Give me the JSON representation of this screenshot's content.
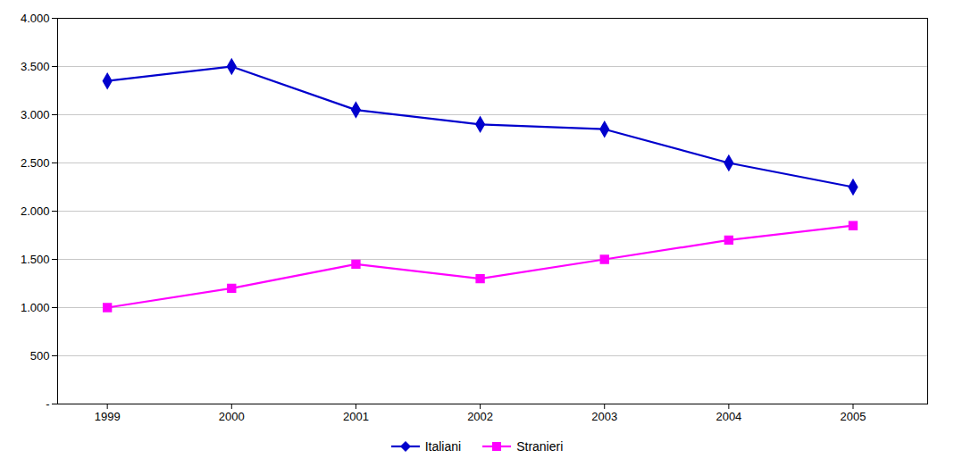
{
  "chart_data": {
    "type": "line",
    "x": [
      1999,
      2000,
      2001,
      2002,
      2003,
      2004,
      2005
    ],
    "xlim": [
      1998.6,
      2005.6
    ],
    "xticks": [
      1999,
      2000,
      2001,
      2002,
      2003,
      2004,
      2005
    ],
    "ylim": [
      0,
      4000
    ],
    "yticks": [
      {
        "value": 0,
        "label": "-"
      },
      500,
      {
        "value": 1000,
        "label": "1.000"
      },
      {
        "value": 1500,
        "label": "1.500"
      },
      {
        "value": 2000,
        "label": "2.000"
      },
      {
        "value": 2500,
        "label": "2.500"
      },
      {
        "value": 3000,
        "label": "3.000"
      },
      {
        "value": 3500,
        "label": "3.500"
      },
      {
        "value": 4000,
        "label": "4.000"
      }
    ],
    "grid": true,
    "legend": "bottom",
    "series": [
      {
        "name": "Italiani",
        "color": "#0000CD",
        "marker": "diamond",
        "values": [
          3350,
          3500,
          3050,
          2900,
          2850,
          2500,
          2250
        ]
      },
      {
        "name": "Stranieri",
        "color": "#FF00FF",
        "marker": "square",
        "values": [
          1000,
          1200,
          1450,
          1300,
          1500,
          1700,
          1850
        ]
      }
    ]
  }
}
